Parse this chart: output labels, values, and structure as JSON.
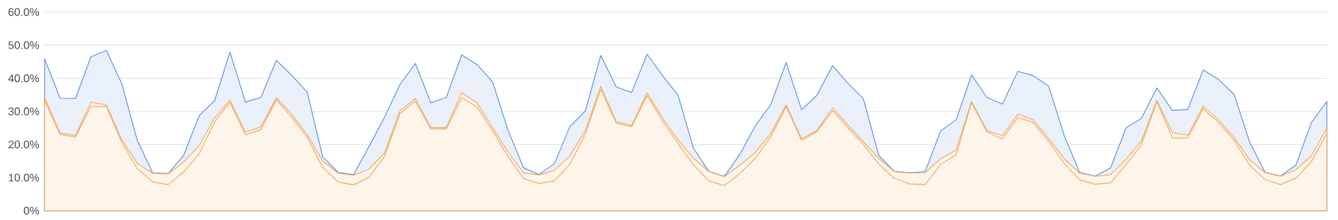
{
  "chart_data": {
    "type": "area",
    "categories": [
      null,
      null,
      null,
      null,
      null,
      null,
      null,
      null,
      null,
      null,
      null,
      null,
      null,
      null,
      null,
      null,
      null,
      null,
      null,
      null,
      null,
      null,
      null,
      null,
      null,
      null,
      null,
      null,
      null,
      null,
      null,
      null,
      null,
      null,
      null,
      null,
      null,
      null,
      null,
      null,
      null,
      null,
      null,
      null,
      null,
      null,
      null,
      null,
      null,
      null,
      null,
      null,
      null,
      null,
      null,
      null,
      null,
      null,
      null,
      null,
      null,
      null,
      null,
      null,
      null,
      null,
      null,
      null,
      null,
      null,
      null,
      null,
      null,
      null,
      null,
      null,
      null,
      null,
      null,
      null,
      null,
      null,
      null,
      null
    ],
    "ylim": [
      0,
      60
    ],
    "yticks": [
      {
        "value": 0,
        "label": "0%"
      },
      {
        "value": 10,
        "label": "10.0%"
      },
      {
        "value": 20,
        "label": "20.0%"
      },
      {
        "value": 30,
        "label": "30.0%"
      },
      {
        "value": 40,
        "label": "40.0%"
      },
      {
        "value": 50,
        "label": "50.0%"
      },
      {
        "value": 60,
        "label": "60.0%"
      }
    ],
    "tick_labels": "y",
    "grid": "y",
    "series": [
      {
        "color": "#5b8fd9",
        "values": [
          45.9,
          34.0,
          33.9,
          46.5,
          48.4,
          38.3,
          21.2,
          11.4,
          11.2,
          16.7,
          28.7,
          33.2,
          47.9,
          32.8,
          34.2,
          45.4,
          40.9,
          35.8,
          16.3,
          11.6,
          10.9,
          19.4,
          28.2,
          38.1,
          44.5,
          32.6,
          34.2,
          47.1,
          44.1,
          38.9,
          24.3,
          13.0,
          10.9,
          14.2,
          25.4,
          30.1,
          46.9,
          37.4,
          35.7,
          47.3,
          40.8,
          34.9,
          18.9,
          11.9,
          10.4,
          17.0,
          25.6,
          32.0,
          44.8,
          30.5,
          34.9,
          43.8,
          38.5,
          33.8,
          16.7,
          11.9,
          11.5,
          11.8,
          24.1,
          27.4,
          41.0,
          34.2,
          32.2,
          42.1,
          40.8,
          37.6,
          22.7,
          11.6,
          10.5,
          12.9,
          25.0,
          27.9,
          37.1,
          30.3,
          30.6,
          42.5,
          39.6,
          35.1,
          20.8,
          11.6,
          10.5,
          13.8,
          26.6,
          33.0
        ]
      },
      {
        "color": "#f0a860",
        "values": [
          34.1,
          23.5,
          22.7,
          32.8,
          31.9,
          21.4,
          14.3,
          11.3,
          11.1,
          14.7,
          19.6,
          28.0,
          33.4,
          23.7,
          25.3,
          34.1,
          29.1,
          23.0,
          15.0,
          11.3,
          10.7,
          12.6,
          17.4,
          30.1,
          33.9,
          25.1,
          25.1,
          35.7,
          32.5,
          25.1,
          17.7,
          11.4,
          10.8,
          12.2,
          16.5,
          24.2,
          37.6,
          26.9,
          25.8,
          35.6,
          28.0,
          21.4,
          15.9,
          11.8,
          10.3,
          13.7,
          17.6,
          23.3,
          32.0,
          21.7,
          24.3,
          31.0,
          25.9,
          20.8,
          15.8,
          11.8,
          11.4,
          11.5,
          15.7,
          18.3,
          33.0,
          24.2,
          22.7,
          29.2,
          27.4,
          21.7,
          15.7,
          11.4,
          10.4,
          10.9,
          15.5,
          21.1,
          33.3,
          23.6,
          22.8,
          31.6,
          27.4,
          22.1,
          15.4,
          11.5,
          10.4,
          12.4,
          16.6,
          24.9
        ]
      },
      {
        "color": "#f0a860",
        "type": "line",
        "values": [
          33.3,
          23.0,
          22.3,
          31.5,
          31.5,
          20.6,
          12.7,
          8.7,
          7.9,
          11.7,
          17.1,
          26.8,
          32.7,
          22.9,
          24.5,
          33.5,
          28.2,
          22.2,
          13.1,
          8.7,
          7.8,
          10.1,
          16.4,
          29.3,
          33.1,
          24.7,
          24.7,
          34.1,
          31.3,
          24.2,
          16.3,
          9.8,
          8.2,
          9.0,
          14.1,
          23.1,
          36.7,
          26.5,
          25.4,
          34.8,
          27.1,
          20.4,
          13.9,
          9.0,
          7.6,
          11.2,
          15.8,
          22.3,
          31.5,
          21.2,
          23.9,
          30.2,
          25.1,
          20.0,
          14.1,
          9.8,
          8.1,
          7.9,
          14.0,
          16.9,
          32.6,
          23.8,
          21.7,
          28.2,
          26.6,
          20.9,
          14.3,
          9.3,
          8.0,
          8.4,
          14.0,
          20.0,
          32.9,
          22.0,
          22.0,
          30.8,
          26.6,
          21.3,
          13.7,
          9.4,
          7.9,
          9.9,
          14.8,
          23.4
        ]
      }
    ]
  }
}
